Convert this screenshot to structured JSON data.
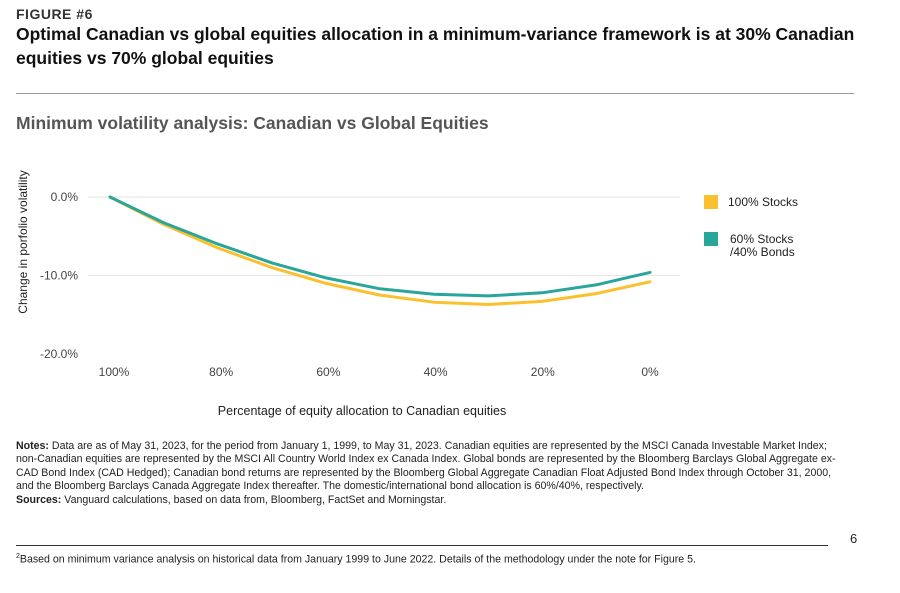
{
  "figure": {
    "label": "FIGURE #6",
    "title": "Optimal Canadian vs global equities allocation in a minimum-variance framework is at 30% Canadian equities vs 70% global equities"
  },
  "chart_title": "Minimum volatility analysis: Canadian vs Global Equities",
  "colors": {
    "stocks100": "#fbc02d",
    "stocks60": "#2aa59a",
    "grid": "#e6e6e6",
    "text": "#333333"
  },
  "chart_data": {
    "type": "line",
    "title": "Minimum volatility analysis: Canadian vs Global Equities",
    "xlabel": "Percentage of equity allocation to Canadian equities",
    "ylabel": "Change in porfolio volatility",
    "categories": [
      "100%",
      "90%",
      "80%",
      "70%",
      "60%",
      "50%",
      "40%",
      "30%",
      "20%",
      "10%",
      "0%"
    ],
    "tick_labels_x": [
      "100%",
      "80%",
      "60%",
      "40%",
      "20%",
      "0%"
    ],
    "tick_labels_y": [
      "0.0%",
      "-10.0%",
      "-20.0%"
    ],
    "ylim": [
      -20,
      0
    ],
    "grid": "horizontal",
    "legend_position": "right",
    "series": [
      {
        "name": "100% Stocks",
        "color": "#fbc02d",
        "values": [
          0,
          -3.5,
          -6.5,
          -9.0,
          -11.0,
          -12.5,
          -13.4,
          -13.7,
          -13.3,
          -12.3,
          -10.8
        ]
      },
      {
        "name": "60% Stocks /40% Bonds",
        "color": "#2aa59a",
        "values": [
          0,
          -3.3,
          -6.0,
          -8.4,
          -10.3,
          -11.7,
          -12.4,
          -12.6,
          -12.2,
          -11.2,
          -9.6
        ]
      }
    ]
  },
  "legend": {
    "item1": "100% Stocks",
    "item2_line1": "60% Stocks",
    "item2_line2": "/40% Bonds"
  },
  "notes": {
    "notes_label": "Notes:",
    "notes_text": " Data are as of May 31, 2023, for the period from January 1, 1999, to May 31, 2023. Canadian equities are represented by the MSCI Canada Investable Market Index; non-Canadian equities are represented by the MSCI All Country World Index ex Canada Index. Global bonds are represented by the Bloomberg Barclays Global Aggregate ex-CAD Bond Index (CAD Hedged); Canadian bond returns are represented by the Bloomberg Global Aggregate Canadian Float Adjusted Bond Index through October 31, 2000, and the Bloomberg Barclays Canada Aggregate Index thereafter. The domestic/international bond allocation is 60%/40%, respectively.",
    "sources_label": "Sources:",
    "sources_text": " Vanguard calculations, based on data from, Bloomberg, FactSet and Morningstar."
  },
  "page_number": "6",
  "footnote": {
    "marker": "2",
    "text": "Based on minimum variance analysis on historical data from January 1999 to June 2022. Details of the methodology under the note for Figure 5."
  }
}
